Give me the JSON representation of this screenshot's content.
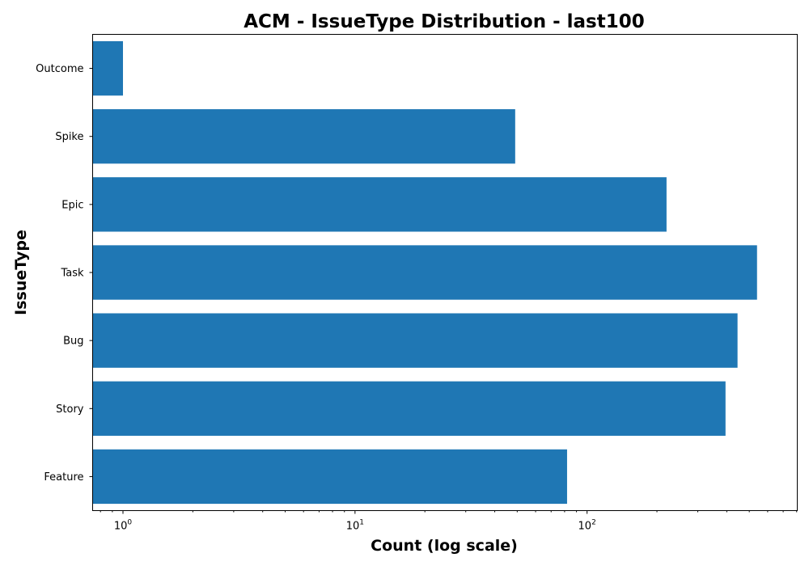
{
  "chart_data": {
    "type": "bar",
    "orientation": "horizontal",
    "title": "ACM - IssueType Distribution - last100",
    "xlabel": "Count (log scale)",
    "ylabel": "IssueType",
    "xscale": "log",
    "xlim": [
      0.74,
      805
    ],
    "grid": false,
    "categories": [
      "Outcome",
      "Spike",
      "Epic",
      "Task",
      "Bug",
      "Story",
      "Feature"
    ],
    "values": [
      1,
      49,
      220,
      540,
      445,
      395,
      82
    ],
    "x_major_ticks": [
      {
        "value": 1,
        "base": "10",
        "exp": "0"
      },
      {
        "value": 10,
        "base": "10",
        "exp": "1"
      },
      {
        "value": 100,
        "base": "10",
        "exp": "2"
      }
    ],
    "colors": {
      "bar": "#1f77b4"
    }
  }
}
